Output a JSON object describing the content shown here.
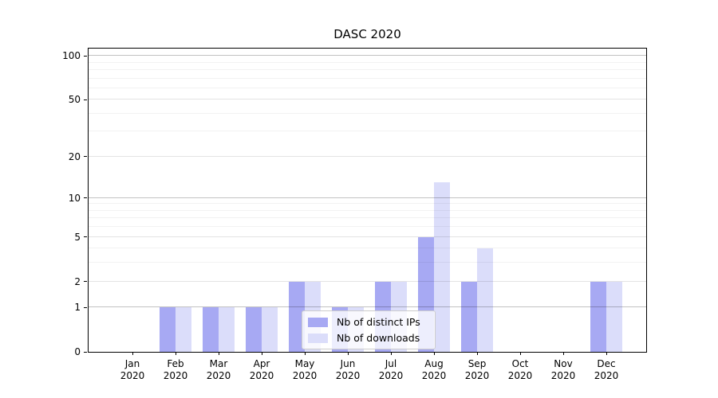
{
  "title": "DASC 2020",
  "chart_data": {
    "type": "bar",
    "title": "DASC 2020",
    "xlabel": "",
    "ylabel": "",
    "year": "2020",
    "categories": [
      {
        "month": "Jan",
        "year": "2020"
      },
      {
        "month": "Feb",
        "year": "2020"
      },
      {
        "month": "Mar",
        "year": "2020"
      },
      {
        "month": "Apr",
        "year": "2020"
      },
      {
        "month": "May",
        "year": "2020"
      },
      {
        "month": "Jun",
        "year": "2020"
      },
      {
        "month": "Jul",
        "year": "2020"
      },
      {
        "month": "Aug",
        "year": "2020"
      },
      {
        "month": "Sep",
        "year": "2020"
      },
      {
        "month": "Oct",
        "year": "2020"
      },
      {
        "month": "Nov",
        "year": "2020"
      },
      {
        "month": "Dec",
        "year": "2020"
      }
    ],
    "series": [
      {
        "name": "Nb of distinct IPs",
        "color": "#a7a9f3",
        "values": [
          0,
          1,
          1,
          1,
          2,
          1,
          2,
          5,
          2,
          0,
          0,
          2
        ]
      },
      {
        "name": "Nb of downloads",
        "color": "#dbddfa",
        "values": [
          0,
          1,
          1,
          1,
          2,
          1,
          2,
          13,
          4,
          0,
          0,
          2
        ]
      }
    ],
    "y_scale": "log1p",
    "ylim": [
      0,
      112
    ],
    "y_major_ticks": [
      0,
      1,
      2,
      5,
      10,
      20,
      50,
      100
    ],
    "y_emphasized_gridlines": [
      1,
      10,
      100
    ],
    "y_minor_ticks": [
      3,
      4,
      6,
      7,
      8,
      9,
      30,
      40,
      60,
      70,
      80,
      90
    ],
    "grid": true,
    "legend_position": "lower center",
    "colors": {
      "axis": "#000000",
      "grid_major_strong": "rgba(0,0,0,0.24)",
      "grid_major_light": "rgba(0,0,0,0.11)",
      "grid_minor": "rgba(0,0,0,0.05)",
      "legend_border": "#cccccc",
      "background": "#ffffff"
    }
  }
}
